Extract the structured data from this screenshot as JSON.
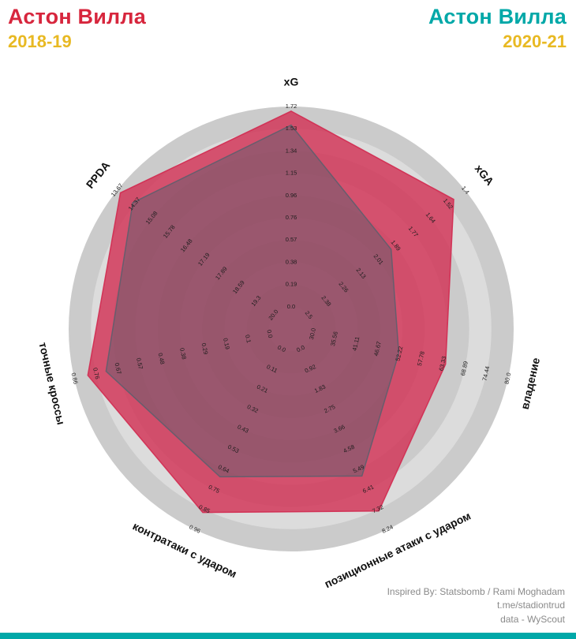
{
  "header": {
    "left": {
      "team": "Астон Вилла",
      "season": "2018-19",
      "team_color": "#d7263d",
      "season_color": "#e8b923"
    },
    "right": {
      "team": "Астон Вилла",
      "season": "2020-21",
      "team_color": "#00a8a8",
      "season_color": "#e8b923"
    }
  },
  "credits": {
    "line1": "Inspired By: Statsbomb / Rami Moghadam",
    "line2": "t.me/stadiontrud",
    "line3": "data - WyScout"
  },
  "footer_bar_color": "#00a8a8",
  "chart_data": {
    "type": "radar",
    "title": "Астон Вилла 2018-19 vs Астон Вилла 2020-21",
    "legend_position": "top",
    "grid": "concentric-circles",
    "params": [
      {
        "label": "xG",
        "range": [
          0.0,
          1.72
        ],
        "ticks": [
          "0.0",
          "0.19",
          "0.38",
          "0.57",
          "0.76",
          "0.96",
          "1.15",
          "1.34",
          "1.53",
          "1.72"
        ]
      },
      {
        "label": "xGA",
        "range": [
          2.5,
          1.4
        ],
        "ticks": [
          "2.5",
          "2.38",
          "2.26",
          "2.13",
          "2.01",
          "1.89",
          "1.77",
          "1.64",
          "1.52",
          "1.4"
        ]
      },
      {
        "label": "владение",
        "range": [
          30.0,
          80.0
        ],
        "ticks": [
          "30.0",
          "35.56",
          "41.11",
          "46.67",
          "52.22",
          "57.78",
          "63.33",
          "68.89",
          "74.44",
          "80.0"
        ]
      },
      {
        "label": "позиционные атаки с ударом",
        "range": [
          0.0,
          8.24
        ],
        "ticks": [
          "0.0",
          "0.92",
          "1.83",
          "2.75",
          "3.66",
          "4.58",
          "5.49",
          "6.41",
          "7.32",
          "8.24"
        ]
      },
      {
        "label": "контратаки с ударом",
        "range": [
          0.0,
          0.96
        ],
        "ticks": [
          "0.0",
          "0.11",
          "0.21",
          "0.32",
          "0.43",
          "0.53",
          "0.64",
          "0.75",
          "0.85",
          "0.96"
        ]
      },
      {
        "label": "точные кроссы",
        "range": [
          0.0,
          0.86
        ],
        "ticks": [
          "0.0",
          "0.1",
          "0.19",
          "0.29",
          "0.38",
          "0.48",
          "0.57",
          "0.67",
          "0.76",
          "0.86"
        ]
      },
      {
        "label": "PPDA",
        "range": [
          20.0,
          13.67
        ],
        "ticks": [
          "20.0",
          "19.3",
          "18.59",
          "17.89",
          "17.19",
          "16.48",
          "15.78",
          "15.08",
          "14.37",
          "13.67"
        ]
      }
    ],
    "series": [
      {
        "name": "Астон Вилла 2018-19",
        "color": "#d22a50",
        "fill_opacity": 0.78,
        "values": [
          1.68,
          1.48,
          64.0,
          7.4,
          0.87,
          0.8,
          13.8
        ]
      },
      {
        "name": "Астон Вилла 2020-21",
        "color": "#5f5e6d",
        "fill_opacity": 0.5,
        "values": [
          1.56,
          1.92,
          52.0,
          5.8,
          0.68,
          0.72,
          14.3
        ]
      }
    ],
    "rings": {
      "count": 10,
      "colors": [
        "#cbcbcb",
        "#dcdcdc"
      ]
    },
    "start_angle_deg": 90,
    "clockwise": true
  }
}
